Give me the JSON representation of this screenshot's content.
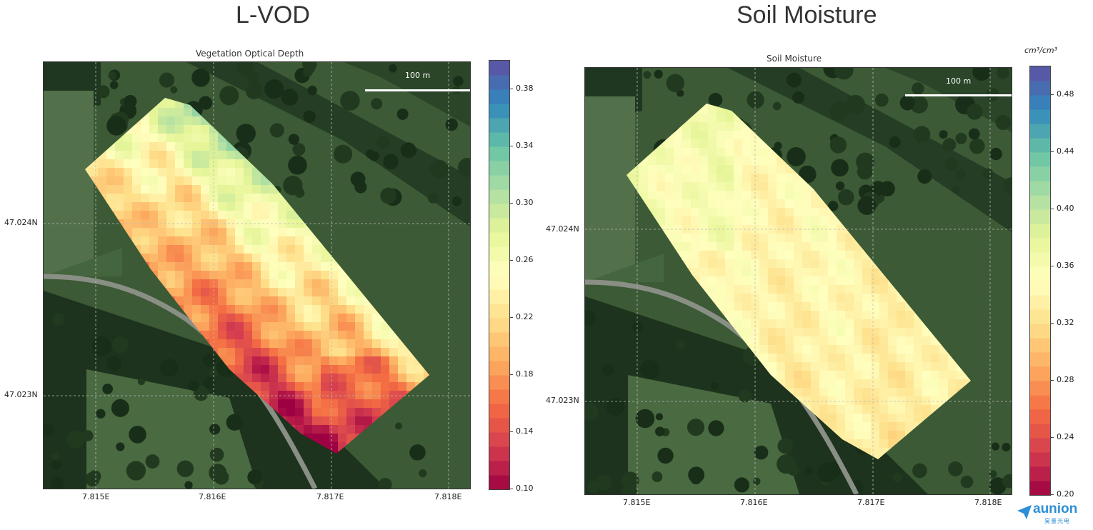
{
  "panels": [
    {
      "big_title": "L-VOD",
      "chart_title": "Vegetation Optical Depth",
      "unit": "",
      "scale_label": "100 m",
      "x_ticks": [
        "7.815E",
        "7.816E",
        "7.817E",
        "7.818E"
      ],
      "y_ticks": [
        "47.024N",
        "47.023N"
      ],
      "colorbar_ticks": [
        "0.38",
        "0.34",
        "0.30",
        "0.26",
        "0.22",
        "0.18",
        "0.14",
        "0.10"
      ]
    },
    {
      "big_title": "Soil Moisture",
      "chart_title": "Soil Moisture",
      "unit": "cm³/cm³",
      "scale_label": "100 m",
      "x_ticks": [
        "7.815E",
        "7.816E",
        "7.817E",
        "7.818E"
      ],
      "y_ticks": [
        "47.024N",
        "47.023N"
      ],
      "colorbar_ticks": [
        "0.48",
        "0.44",
        "0.40",
        "0.36",
        "0.32",
        "0.28",
        "0.24",
        "0.20"
      ]
    }
  ],
  "logo": {
    "text": "aunion",
    "sub": "昊量光电"
  },
  "colors": {
    "cmap": [
      "#9e0142",
      "#d53e4f",
      "#f46d43",
      "#fdae61",
      "#fee08b",
      "#ffffbf",
      "#e6f598",
      "#abdda4",
      "#66c2a5",
      "#3288bd",
      "#5e4fa2"
    ]
  },
  "chart_data": [
    {
      "type": "heatmap",
      "title": "Vegetation Optical Depth",
      "xlabel": "",
      "ylabel": "",
      "x_ticks": [
        7.815,
        7.816,
        7.817,
        7.818
      ],
      "y_ticks": [
        47.024,
        47.023
      ],
      "colorbar_range": [
        0.1,
        0.4
      ],
      "colorbar_ticks": [
        0.1,
        0.14,
        0.18,
        0.22,
        0.26,
        0.3,
        0.34,
        0.38
      ],
      "colormap": "Spectral",
      "grid": true,
      "value_range_observed": [
        0.17,
        0.39
      ],
      "pattern": "higher values (blue, ~0.34-0.38) along the north-east edge of the field, lower values (orange, ~0.18-0.22) in the south-west half"
    },
    {
      "type": "heatmap",
      "title": "Soil Moisture",
      "xlabel": "",
      "ylabel": "",
      "unit": "cm³/cm³",
      "x_ticks": [
        7.815,
        7.816,
        7.817,
        7.818
      ],
      "y_ticks": [
        47.024,
        47.023
      ],
      "colorbar_range": [
        0.2,
        0.5
      ],
      "colorbar_ticks": [
        0.2,
        0.24,
        0.28,
        0.32,
        0.36,
        0.4,
        0.44,
        0.48
      ],
      "colormap": "Spectral",
      "grid": true,
      "value_range_observed": [
        0.3,
        0.4
      ],
      "pattern": "mostly uniform ~0.33-0.37 (pale yellow), slightly wetter green patches near the north-west, drier orange patches toward the south"
    }
  ]
}
